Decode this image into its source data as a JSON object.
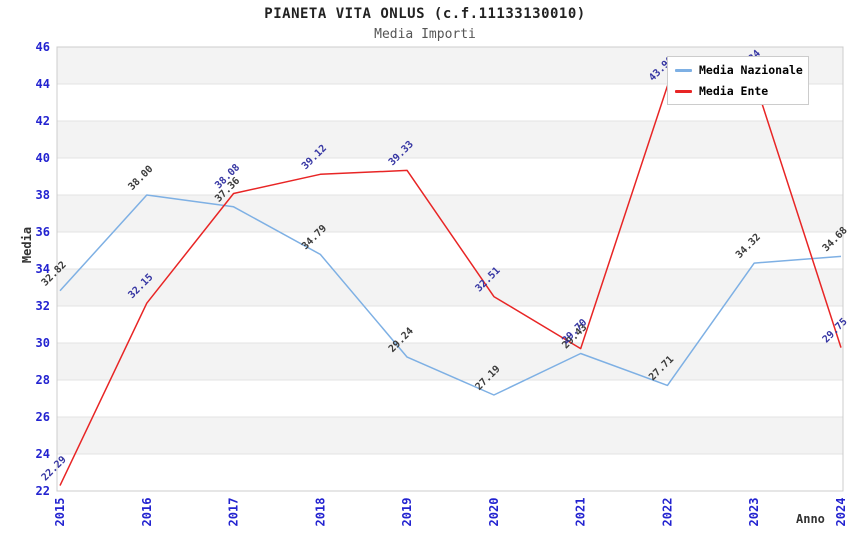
{
  "page": {
    "title": "PIANETA VITA ONLUS (c.f.11133130010)",
    "subtitle": "Media Importi"
  },
  "chart_data": {
    "type": "line",
    "title": "PIANETA VITA ONLUS (c.f.11133130010)",
    "subtitle": "Media Importi",
    "xlabel": "Anno",
    "ylabel": "Media",
    "categories": [
      "2015",
      "2016",
      "2017",
      "2018",
      "2019",
      "2020",
      "2021",
      "2022",
      "2023",
      "2024"
    ],
    "series": [
      {
        "name": "Media Nazionale",
        "color": "#7eb0e4",
        "label_color": "#3c3c3c",
        "values": [
          32.82,
          38.0,
          37.36,
          34.79,
          29.24,
          27.19,
          29.43,
          27.71,
          34.32,
          34.68
        ]
      },
      {
        "name": "Media Ente",
        "color": "#e82525",
        "label_color": "#3636a3",
        "values": [
          22.29,
          32.15,
          38.08,
          39.12,
          39.33,
          32.51,
          29.7,
          43.9,
          44.24,
          29.75
        ]
      }
    ],
    "ylim": [
      22,
      46
    ],
    "ytick_step": 2,
    "yticks": [
      22,
      24,
      26,
      28,
      30,
      32,
      34,
      36,
      38,
      40,
      42,
      44,
      46
    ],
    "grid": "horizontal alternating bands every 2 units, light gray gridlines",
    "legend_position": "top-right inside plot",
    "xtick_rotation": -90,
    "data_label_rotation": -45,
    "data_label_format": "0.00",
    "notes": "Media Ente labels at 2022 and 2023 are partially hidden behind the legend box; 2023 red label is cut off"
  },
  "colors": {
    "axis_tick_blue": "#2323d0",
    "band_gray": "#f3f3f3",
    "band_white": "#ffffff",
    "gridline": "#e3e3e3",
    "plot_border": "#cccccc",
    "title": "#222222",
    "subtitle": "#555555",
    "axis_title": "#333333",
    "legend_text": "#000000",
    "legend_border": "#cccccc"
  }
}
